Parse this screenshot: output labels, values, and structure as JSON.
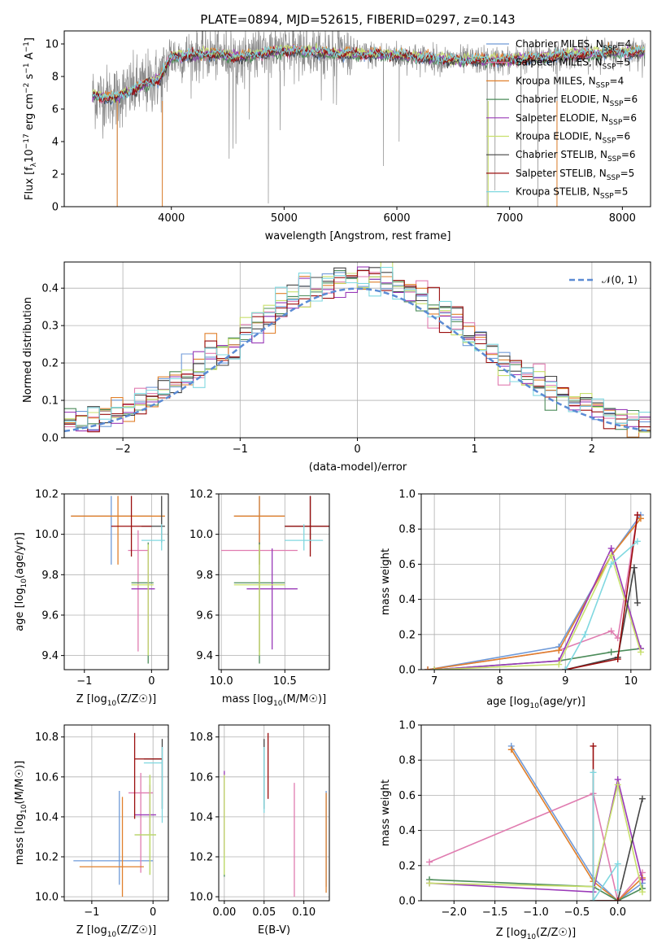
{
  "colors": {
    "chabrier_miles": "#6f9ad8",
    "salpeter_miles": "#e07cb0",
    "kroupa_miles": "#e0802c",
    "chabrier_elodie": "#4c8c5a",
    "salpeter_elodie": "#9a3ab8",
    "kroupa_elodie": "#c8e06c",
    "chabrier_stelib": "#444444",
    "salpeter_stelib": "#9a0e0e",
    "kroupa_stelib": "#80d8e0",
    "data": "#8c8c8c",
    "normal": "#5b8bd4"
  },
  "chart_data": [
    {
      "id": "spectrum",
      "type": "line",
      "title": "PLATE=0894, MJD=52615, FIBERID=0297, z=0.143",
      "xlabel": "wavelength [Angstrom, rest frame]",
      "ylabel_main": "Flux [f",
      "ylabel_sub_lambda": "λ",
      "ylabel_mid": "10",
      "ylabel_exp1": "−17",
      "ylabel_unit": " erg cm",
      "ylabel_exp2": "−2",
      "ylabel_s": " s",
      "ylabel_exp3": "−1",
      "ylabel_A": " A",
      "ylabel_exp4": "−1",
      "ylabel_end": "]",
      "xlim": [
        3050,
        8250
      ],
      "ylim": [
        0,
        10.8
      ],
      "xticks": [
        4000,
        5000,
        6000,
        7000,
        8000
      ],
      "yticks": [
        0,
        2,
        4,
        6,
        8,
        10
      ],
      "legend_loc": "upper right",
      "legend": [
        {
          "name": "Chabrier MILES, N",
          "sub": "SSP",
          "val": "=4",
          "key": "chabrier_miles"
        },
        {
          "name": "Salpeter MILES, N",
          "sub": "SSP",
          "val": "=5",
          "key": "salpeter_miles"
        },
        {
          "name": "Kroupa MILES, N",
          "sub": "SSP",
          "val": "=4",
          "key": "kroupa_miles"
        },
        {
          "name": "Chabrier ELODIE, N",
          "sub": "SSP",
          "val": "=6",
          "key": "chabrier_elodie"
        },
        {
          "name": "Salpeter ELODIE, N",
          "sub": "SSP",
          "val": "=6",
          "key": "salpeter_elodie"
        },
        {
          "name": "Kroupa ELODIE, N",
          "sub": "SSP",
          "val": "=6",
          "key": "kroupa_elodie"
        },
        {
          "name": "Chabrier STELIB, N",
          "sub": "SSP",
          "val": "=6",
          "key": "chabrier_stelib"
        },
        {
          "name": "Salpeter STELIB, N",
          "sub": "SSP",
          "val": "=5",
          "key": "salpeter_stelib"
        },
        {
          "name": "Kroupa STELIB, N",
          "sub": "SSP",
          "val": "=5",
          "key": "kroupa_stelib"
        }
      ],
      "continuum": [
        [
          3300,
          6.8
        ],
        [
          3500,
          6.7
        ],
        [
          3700,
          7.3
        ],
        [
          3900,
          7.9
        ],
        [
          4000,
          9.2
        ],
        [
          4300,
          9.4
        ],
        [
          4600,
          9.2
        ],
        [
          5000,
          9.6
        ],
        [
          5500,
          9.4
        ],
        [
          6000,
          9.3
        ],
        [
          6500,
          9.0
        ],
        [
          7000,
          9.0
        ],
        [
          7500,
          9.3
        ],
        [
          8000,
          9.5
        ],
        [
          8200,
          9.5
        ]
      ]
    },
    {
      "id": "residuals",
      "type": "histogram",
      "xlabel": "(data-model)/error",
      "ylabel": "Normed distribution",
      "xlim": [
        -2.5,
        2.5
      ],
      "ylim": [
        0,
        0.47
      ],
      "xticks": [
        -2,
        -1,
        0,
        1,
        2
      ],
      "yticks": [
        0.0,
        0.1,
        0.2,
        0.3,
        0.4
      ],
      "grid": true,
      "legend_loc": "upper right",
      "legend": [
        {
          "name": "𝒩(0, 1)",
          "key": "normal"
        }
      ],
      "bin_width": 0.1
    },
    {
      "id": "age_vs_Z",
      "type": "errorbar",
      "xlabel": "Z [log",
      "xlabel_sub": "10",
      "xlabel_end": "(Z/Z☉)]",
      "ylabel": "age  [log",
      "ylabel_sub": "10",
      "ylabel_end": "(age/yr)]",
      "xlim": [
        -1.3,
        0.25
      ],
      "ylim": [
        9.33,
        10.2
      ],
      "xticks": [
        -1,
        0
      ],
      "yticks": [
        9.4,
        9.6,
        9.8,
        10.0,
        10.2
      ],
      "points": [
        {
          "key": "chabrier_miles",
          "x": -0.6,
          "y": 10.09,
          "xl": 0.6,
          "xr": 0.6,
          "yl": 0.24,
          "yh": 0.1
        },
        {
          "key": "salpeter_miles",
          "x": -0.2,
          "y": 9.92,
          "xl": 0.15,
          "xr": 0.15,
          "yl": 0.5,
          "yh": 0.1
        },
        {
          "key": "kroupa_miles",
          "x": -0.5,
          "y": 10.09,
          "xl": 0.7,
          "xr": 0.7,
          "yl": 0.24,
          "yh": 0.1
        },
        {
          "key": "chabrier_elodie",
          "x": -0.05,
          "y": 9.76,
          "xl": 0.25,
          "xr": 0.08,
          "yl": 0.4,
          "yh": 0.2
        },
        {
          "key": "salpeter_elodie",
          "x": -0.05,
          "y": 9.73,
          "xl": 0.25,
          "xr": 0.1,
          "yl": 0.3,
          "yh": 0.2
        },
        {
          "key": "kroupa_elodie",
          "x": -0.05,
          "y": 9.75,
          "xl": 0.25,
          "xr": 0.08,
          "yl": 0.35,
          "yh": 0.2
        },
        {
          "key": "chabrier_stelib",
          "x": 0.15,
          "y": 10.04,
          "xl": 0.3,
          "xr": 0.05,
          "yl": 0.08,
          "yh": 0.15
        },
        {
          "key": "salpeter_stelib",
          "x": -0.3,
          "y": 10.04,
          "xl": 0.3,
          "xr": 0.3,
          "yl": 0.15,
          "yh": 0.15
        },
        {
          "key": "kroupa_stelib",
          "x": 0.15,
          "y": 9.97,
          "xl": 0.3,
          "xr": 0.05,
          "yl": 0.05,
          "yh": 0.08
        }
      ]
    },
    {
      "id": "age_vs_mass",
      "type": "errorbar",
      "xlabel": "mass [log",
      "xlabel_sub": "10",
      "xlabel_end": "(M/M☉)]",
      "xlim": [
        9.98,
        10.85
      ],
      "ylim": [
        9.33,
        10.2
      ],
      "xticks": [
        10.0,
        10.5
      ],
      "yticks": [
        9.4,
        9.6,
        9.8,
        10.0,
        10.2
      ],
      "points": [
        {
          "key": "chabrier_miles",
          "x": 10.3,
          "y": 10.09,
          "xl": 0.2,
          "xr": 0.2,
          "yl": 0.24,
          "yh": 0.1
        },
        {
          "key": "salpeter_miles",
          "x": 10.3,
          "y": 9.92,
          "xl": 0.3,
          "xr": 0.3,
          "yl": 0.5,
          "yh": 0.1
        },
        {
          "key": "kroupa_miles",
          "x": 10.3,
          "y": 10.09,
          "xl": 0.2,
          "xr": 0.2,
          "yl": 0.24,
          "yh": 0.1
        },
        {
          "key": "chabrier_elodie",
          "x": 10.3,
          "y": 9.76,
          "xl": 0.2,
          "xr": 0.2,
          "yl": 0.4,
          "yh": 0.2
        },
        {
          "key": "salpeter_elodie",
          "x": 10.4,
          "y": 9.73,
          "xl": 0.2,
          "xr": 0.2,
          "yl": 0.3,
          "yh": 0.2
        },
        {
          "key": "kroupa_elodie",
          "x": 10.3,
          "y": 9.75,
          "xl": 0.2,
          "xr": 0.2,
          "yl": 0.35,
          "yh": 0.2
        },
        {
          "key": "chabrier_stelib",
          "x": 10.7,
          "y": 10.04,
          "xl": 0.2,
          "xr": 0.2,
          "yl": 0.08,
          "yh": 0.15
        },
        {
          "key": "salpeter_stelib",
          "x": 10.7,
          "y": 10.04,
          "xl": 0.2,
          "xr": 0.2,
          "yl": 0.15,
          "yh": 0.15
        },
        {
          "key": "kroupa_stelib",
          "x": 10.65,
          "y": 9.97,
          "xl": 0.15,
          "xr": 0.15,
          "yl": 0.05,
          "yh": 0.08
        }
      ]
    },
    {
      "id": "weight_vs_age",
      "type": "line",
      "xlabel": "age  [log",
      "xlabel_sub": "10",
      "xlabel_end": "(age/yr)]",
      "ylabel": "mass weight",
      "xlim": [
        6.8,
        10.3
      ],
      "ylim": [
        0,
        1.0
      ],
      "xticks": [
        7,
        8,
        9,
        10
      ],
      "yticks": [
        0.0,
        0.2,
        0.4,
        0.6,
        0.8,
        1.0
      ],
      "series": [
        {
          "key": "chabrier_miles",
          "x": [
            6.9,
            8.9,
            9.7,
            10.15
          ],
          "y": [
            0.0,
            0.13,
            0.65,
            0.88
          ]
        },
        {
          "key": "salpeter_miles",
          "x": [
            6.9,
            8.9,
            9.7,
            9.8,
            10.1
          ],
          "y": [
            0.0,
            0.11,
            0.22,
            0.18,
            0.88
          ]
        },
        {
          "key": "kroupa_miles",
          "x": [
            6.9,
            8.9,
            9.7,
            10.15
          ],
          "y": [
            0.0,
            0.11,
            0.65,
            0.86
          ]
        },
        {
          "key": "chabrier_elodie",
          "x": [
            7.0,
            8.9,
            9.7,
            10.15
          ],
          "y": [
            0.0,
            0.05,
            0.1,
            0.12
          ]
        },
        {
          "key": "salpeter_elodie",
          "x": [
            7.0,
            8.9,
            9.7,
            10.15
          ],
          "y": [
            0.0,
            0.05,
            0.69,
            0.12
          ]
        },
        {
          "key": "kroupa_elodie",
          "x": [
            7.0,
            8.9,
            9.7,
            10.15
          ],
          "y": [
            0.0,
            0.03,
            0.65,
            0.1
          ]
        },
        {
          "key": "chabrier_stelib",
          "x": [
            9.0,
            9.8,
            10.05,
            10.1
          ],
          "y": [
            0.0,
            0.07,
            0.58,
            0.38
          ]
        },
        {
          "key": "salpeter_stelib",
          "x": [
            9.0,
            9.8,
            10.1
          ],
          "y": [
            0.0,
            0.06,
            0.88
          ]
        },
        {
          "key": "kroupa_stelib",
          "x": [
            9.0,
            9.3,
            9.7,
            10.1
          ],
          "y": [
            0.0,
            0.2,
            0.6,
            0.73
          ]
        }
      ]
    },
    {
      "id": "mass_vs_Z",
      "type": "errorbar",
      "xlabel": "Z [log",
      "xlabel_sub": "10",
      "xlabel_end": "(Z/Z☉)]",
      "ylabel": "mass [log",
      "ylabel_sub": "10",
      "ylabel_end": "(M/M☉)]",
      "xlim": [
        -1.45,
        0.25
      ],
      "ylim": [
        9.98,
        10.86
      ],
      "xticks": [
        -1,
        0
      ],
      "yticks": [
        10.0,
        10.2,
        10.4,
        10.6,
        10.8
      ],
      "points": [
        {
          "key": "chabrier_miles",
          "x": -0.55,
          "y": 10.18,
          "xl": 0.75,
          "xr": 0.55,
          "yl": 0.12,
          "yh": 0.35
        },
        {
          "key": "salpeter_miles",
          "x": -0.2,
          "y": 10.52,
          "xl": 0.2,
          "xr": 0.2,
          "yl": 0.4,
          "yh": 0.1
        },
        {
          "key": "kroupa_miles",
          "x": -0.5,
          "y": 10.15,
          "xl": 0.7,
          "xr": 0.35,
          "yl": 0.15,
          "yh": 0.35
        },
        {
          "key": "chabrier_elodie",
          "x": -0.05,
          "y": 10.31,
          "xl": 0.25,
          "xr": 0.1,
          "yl": 0.2,
          "yh": 0.3
        },
        {
          "key": "salpeter_elodie",
          "x": -0.05,
          "y": 10.41,
          "xl": 0.25,
          "xr": 0.1,
          "yl": 0.1,
          "yh": 0.15
        },
        {
          "key": "kroupa_elodie",
          "x": -0.05,
          "y": 10.31,
          "xl": 0.25,
          "xr": 0.1,
          "yl": 0.2,
          "yh": 0.3
        },
        {
          "key": "chabrier_stelib",
          "x": 0.15,
          "y": 10.69,
          "xl": 0.3,
          "xr": 0.0,
          "yl": 0.25,
          "yh": 0.1
        },
        {
          "key": "salpeter_stelib",
          "x": -0.3,
          "y": 10.69,
          "xl": 0.0,
          "xr": 0.45,
          "yl": 0.3,
          "yh": 0.13
        },
        {
          "key": "kroupa_stelib",
          "x": 0.15,
          "y": 10.67,
          "xl": 0.3,
          "xr": 0.0,
          "yl": 0.3,
          "yh": 0.08
        }
      ]
    },
    {
      "id": "mass_vs_ebv",
      "type": "errorbar",
      "xlabel": "E(B-V)",
      "xlim": [
        -0.007,
        0.132
      ],
      "ylim": [
        9.98,
        10.86
      ],
      "xticks": [
        0.0,
        0.05,
        0.1
      ],
      "yticks": [
        10.0,
        10.2,
        10.4,
        10.6,
        10.8
      ],
      "points": [
        {
          "key": "chabrier_miles",
          "x": 0.128,
          "y": 10.3,
          "yl": 0.25,
          "yh": 0.23
        },
        {
          "key": "salpeter_miles",
          "x": 0.088,
          "y": 10.3,
          "yl": 0.3,
          "yh": 0.27
        },
        {
          "key": "kroupa_miles",
          "x": 0.128,
          "y": 10.27,
          "yl": 0.25,
          "yh": 0.25
        },
        {
          "key": "chabrier_elodie",
          "x": 0.0,
          "y": 10.3,
          "yl": 0.2,
          "yh": 0.3
        },
        {
          "key": "salpeter_elodie",
          "x": 0.0,
          "y": 10.41,
          "yl": 0.2,
          "yh": 0.22
        },
        {
          "key": "kroupa_elodie",
          "x": 0.0,
          "y": 10.31,
          "yl": 0.2,
          "yh": 0.3
        },
        {
          "key": "chabrier_stelib",
          "x": 0.05,
          "y": 10.69,
          "yl": 0.25,
          "yh": 0.1
        },
        {
          "key": "salpeter_stelib",
          "x": 0.055,
          "y": 10.69,
          "yl": 0.2,
          "yh": 0.13
        },
        {
          "key": "kroupa_stelib",
          "x": 0.05,
          "y": 10.67,
          "yl": 0.25,
          "yh": 0.08
        }
      ]
    },
    {
      "id": "weight_vs_Z",
      "type": "line",
      "xlabel": "Z [log",
      "xlabel_sub": "10",
      "xlabel_end": "(Z/Z☉)]",
      "ylabel": "mass weight",
      "xlim": [
        -2.4,
        0.4
      ],
      "ylim": [
        0,
        1.0
      ],
      "xticks": [
        -2.0,
        -1.5,
        -1.0,
        -0.5,
        0.0
      ],
      "yticks": [
        0.0,
        0.2,
        0.4,
        0.6,
        0.8,
        1.0
      ],
      "series": [
        {
          "key": "chabrier_miles",
          "x": [
            -1.3,
            -0.3,
            0.0,
            0.3
          ],
          "y": [
            0.88,
            0.13,
            0.0,
            0.1
          ]
        },
        {
          "key": "salpeter_miles",
          "x": [
            -2.3,
            -0.3,
            0.0,
            0.3
          ],
          "y": [
            0.22,
            0.61,
            0.0,
            0.16
          ]
        },
        {
          "key": "kroupa_miles",
          "x": [
            -1.3,
            -0.3,
            0.0,
            0.3
          ],
          "y": [
            0.86,
            0.11,
            0.0,
            0.13
          ]
        },
        {
          "key": "chabrier_elodie",
          "x": [
            -2.3,
            -0.3,
            0.0,
            0.3
          ],
          "y": [
            0.12,
            0.08,
            0.0,
            0.07
          ]
        },
        {
          "key": "salpeter_elodie",
          "x": [
            -2.3,
            -0.3,
            0.0,
            0.3
          ],
          "y": [
            0.1,
            0.05,
            0.69,
            0.12
          ]
        },
        {
          "key": "kroupa_elodie",
          "x": [
            -2.3,
            -0.3,
            0.0,
            0.3
          ],
          "y": [
            0.1,
            0.08,
            0.66,
            0.05
          ]
        },
        {
          "key": "chabrier_stelib",
          "x": [
            -0.3,
            0.0,
            0.3
          ],
          "y": [
            0.0,
            0.0,
            0.58
          ]
        },
        {
          "key": "salpeter_stelib",
          "x": [
            -0.3,
            -0.3,
            0.0
          ],
          "y": [
            0.88,
            0.0,
            0.0
          ]
        },
        {
          "key": "kroupa_stelib",
          "x": [
            -0.3,
            -0.3,
            0.0,
            0.0
          ],
          "y": [
            0.73,
            0.0,
            0.21,
            0.06
          ]
        }
      ]
    }
  ]
}
